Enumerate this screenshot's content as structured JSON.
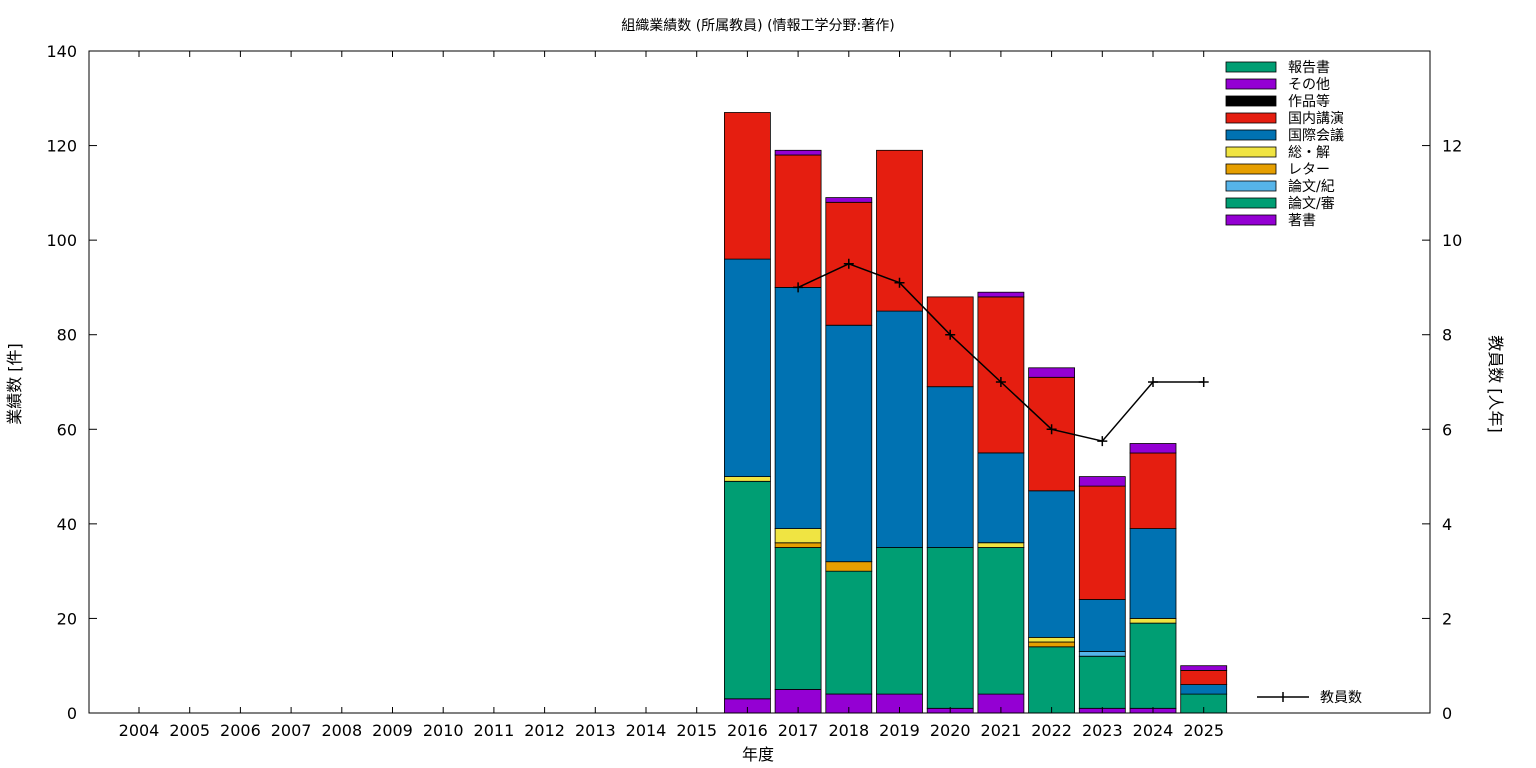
{
  "chart_data": {
    "type": "bar",
    "stacked": true,
    "title": "組織業績数 (所属教員) (情報工学分野:著作)",
    "xlabel": "年度",
    "ylabel": "業績数 [件]",
    "y2label": "教員数 [人年]",
    "ylim": [
      0,
      140
    ],
    "y2lim": [
      0,
      14
    ],
    "yticks": [
      "0",
      "20",
      "40",
      "60",
      "80",
      "100",
      "120",
      "140"
    ],
    "y2ticks": [
      "0",
      "2",
      "4",
      "6",
      "8",
      "10",
      "12"
    ],
    "categories": [
      "2004",
      "2005",
      "2006",
      "2007",
      "2008",
      "2009",
      "2010",
      "2011",
      "2012",
      "2013",
      "2014",
      "2015",
      "2016",
      "2017",
      "2018",
      "2019",
      "2020",
      "2021",
      "2022",
      "2023",
      "2024",
      "2025"
    ],
    "series": [
      {
        "name": "著書",
        "color": "#9400D3",
        "values": [
          0,
          0,
          0,
          0,
          0,
          0,
          0,
          0,
          0,
          0,
          0,
          0,
          3,
          5,
          4,
          4,
          1,
          4,
          0,
          1,
          1,
          0
        ]
      },
      {
        "name": "論文/審",
        "color": "#009E73",
        "values": [
          0,
          0,
          0,
          0,
          0,
          0,
          0,
          0,
          0,
          0,
          0,
          0,
          46,
          30,
          26,
          31,
          34,
          31,
          14,
          11,
          18,
          4
        ]
      },
      {
        "name": "論文/紀",
        "color": "#56B4E9",
        "values": [
          0,
          0,
          0,
          0,
          0,
          0,
          0,
          0,
          0,
          0,
          0,
          0,
          0,
          0,
          0,
          0,
          0,
          0,
          0,
          1,
          0,
          0
        ]
      },
      {
        "name": "レター",
        "color": "#E69F00",
        "values": [
          0,
          0,
          0,
          0,
          0,
          0,
          0,
          0,
          0,
          0,
          0,
          0,
          0,
          1,
          2,
          0,
          0,
          0,
          1,
          0,
          0,
          0
        ]
      },
      {
        "name": "総・解",
        "color": "#F0E442",
        "values": [
          0,
          0,
          0,
          0,
          0,
          0,
          0,
          0,
          0,
          0,
          0,
          0,
          1,
          3,
          0,
          0,
          0,
          1,
          1,
          0,
          1,
          0
        ]
      },
      {
        "name": "国際会議",
        "color": "#0072B2",
        "values": [
          0,
          0,
          0,
          0,
          0,
          0,
          0,
          0,
          0,
          0,
          0,
          0,
          46,
          51,
          50,
          50,
          34,
          19,
          31,
          11,
          19,
          2
        ]
      },
      {
        "name": "国内講演",
        "color": "#E51E10",
        "values": [
          0,
          0,
          0,
          0,
          0,
          0,
          0,
          0,
          0,
          0,
          0,
          0,
          31,
          28,
          26,
          34,
          19,
          33,
          24,
          24,
          16,
          3
        ]
      },
      {
        "name": "作品等",
        "color": "#000000",
        "values": [
          0,
          0,
          0,
          0,
          0,
          0,
          0,
          0,
          0,
          0,
          0,
          0,
          0,
          0,
          0,
          0,
          0,
          0,
          0,
          0,
          0,
          0
        ]
      },
      {
        "name": "その他",
        "color": "#9400D3",
        "values": [
          0,
          0,
          0,
          0,
          0,
          0,
          0,
          0,
          0,
          0,
          0,
          0,
          0,
          1,
          1,
          0,
          0,
          1,
          2,
          2,
          2,
          1
        ]
      },
      {
        "name": "報告書",
        "color": "#009E73",
        "values": [
          0,
          0,
          0,
          0,
          0,
          0,
          0,
          0,
          0,
          0,
          0,
          0,
          0,
          0,
          0,
          0,
          0,
          0,
          0,
          0,
          0,
          0
        ]
      }
    ],
    "line": {
      "name": "教員数",
      "axis": "y2",
      "x": [
        "2017",
        "2018",
        "2019",
        "2020",
        "2021",
        "2022",
        "2023",
        "2024",
        "2025"
      ],
      "values": [
        9.0,
        9.5,
        9.1,
        8.0,
        7.0,
        6.0,
        5.75,
        7.0,
        7.0
      ]
    },
    "legend_position": "top-right",
    "grid": false
  }
}
